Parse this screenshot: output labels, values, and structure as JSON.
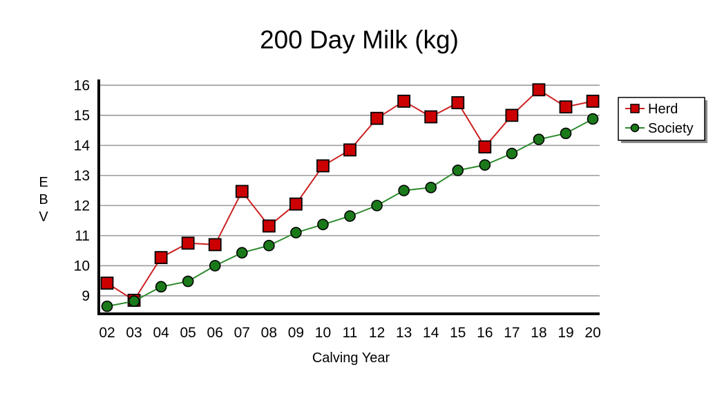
{
  "chart_data": {
    "type": "line",
    "title": "200 Day Milk (kg)",
    "xlabel": "Calving Year",
    "ylabel": "EBV",
    "ylabel_letters": [
      "E",
      "B",
      "V"
    ],
    "categories": [
      "02",
      "03",
      "04",
      "05",
      "06",
      "07",
      "08",
      "09",
      "10",
      "11",
      "12",
      "13",
      "14",
      "15",
      "16",
      "17",
      "18",
      "19",
      "20"
    ],
    "yticks": [
      9,
      10,
      11,
      12,
      13,
      14,
      15,
      16
    ],
    "ylim": [
      8.4,
      16.1
    ],
    "grid": true,
    "legend_position": "right",
    "series": [
      {
        "name": "Herd",
        "marker": "square",
        "color": "#cc0000",
        "line_color": "#cc2020",
        "values": [
          9.42,
          8.85,
          10.27,
          10.75,
          10.7,
          12.47,
          11.32,
          12.05,
          13.32,
          13.85,
          14.9,
          15.47,
          14.95,
          15.42,
          13.95,
          15.0,
          15.85,
          15.28,
          15.47
        ]
      },
      {
        "name": "Society",
        "marker": "circle",
        "color": "#1a7a1a",
        "line_color": "#2e8b2e",
        "values": [
          8.65,
          8.82,
          9.3,
          9.48,
          10.0,
          10.43,
          10.67,
          11.1,
          11.37,
          11.65,
          12.0,
          12.5,
          12.6,
          13.17,
          13.35,
          13.73,
          14.2,
          14.4,
          14.88
        ]
      }
    ]
  }
}
